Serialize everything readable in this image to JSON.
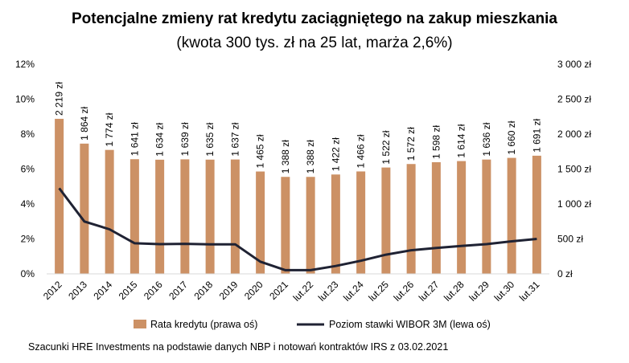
{
  "title": "Potencjalne zmieny rat kredytu zaciągniętego na zakup mieszkania",
  "subtitle": "(kwota 300 tys. zł na 25 lat, marża 2,6%)",
  "source": "Szacunki HRE Investments na podstawie danych NBP i notowań kontraktów IRS z 03.02.2021",
  "colors": {
    "bars": "#CC9165",
    "line": "#1F2233"
  },
  "chart_data": {
    "type": "bar",
    "categories": [
      "2012",
      "2013",
      "2014",
      "2015",
      "2016",
      "2017",
      "2018",
      "2019",
      "2020",
      "2021",
      "lut.22",
      "lut.23",
      "lut.24",
      "lut.25",
      "lut.26",
      "lut.27",
      "lut.28",
      "lut.29",
      "lut.30",
      "lut.31"
    ],
    "series": [
      {
        "name": "Rata kredytu (prawa oś)",
        "type": "bar",
        "axis": "right",
        "values": [
          2219,
          1864,
          1774,
          1641,
          1634,
          1639,
          1635,
          1637,
          1465,
          1388,
          1388,
          1422,
          1466,
          1522,
          1572,
          1598,
          1614,
          1636,
          1660,
          1691
        ],
        "labels": [
          "2 219 zł",
          "1 864 zł",
          "1 774 zł",
          "1 641 zł",
          "1 634 zł",
          "1 639 zł",
          "1 635 zł",
          "1 637 zł",
          "1 465 zł",
          "1 388 zł",
          "1 388 zł",
          "1 422 zł",
          "1 466 zł",
          "1 522 zł",
          "1 572 zł",
          "1 598 zł",
          "1 614 zł",
          "1 636 zł",
          "1 660 zł",
          "1 691 zł"
        ]
      },
      {
        "name": "Poziom stawki WIBOR 3M (lewa oś)",
        "type": "line",
        "axis": "left",
        "values": [
          4.9,
          3.0,
          2.55,
          1.75,
          1.7,
          1.72,
          1.69,
          1.69,
          0.7,
          0.21,
          0.21,
          0.45,
          0.75,
          1.1,
          1.35,
          1.48,
          1.6,
          1.7,
          1.86,
          2.0
        ]
      }
    ],
    "left_axis": {
      "ylim": [
        0,
        12
      ],
      "ticks": [
        "0%",
        "2%",
        "4%",
        "6%",
        "8%",
        "10%",
        "12%"
      ]
    },
    "right_axis": {
      "ylim": [
        0,
        3000
      ],
      "ticks": [
        "0 zł",
        "500 zł",
        "1 000 zł",
        "1 500 zł",
        "2 000 zł",
        "2 500 zł",
        "3 000 zł"
      ]
    },
    "grid": false,
    "legend": "bottom"
  }
}
